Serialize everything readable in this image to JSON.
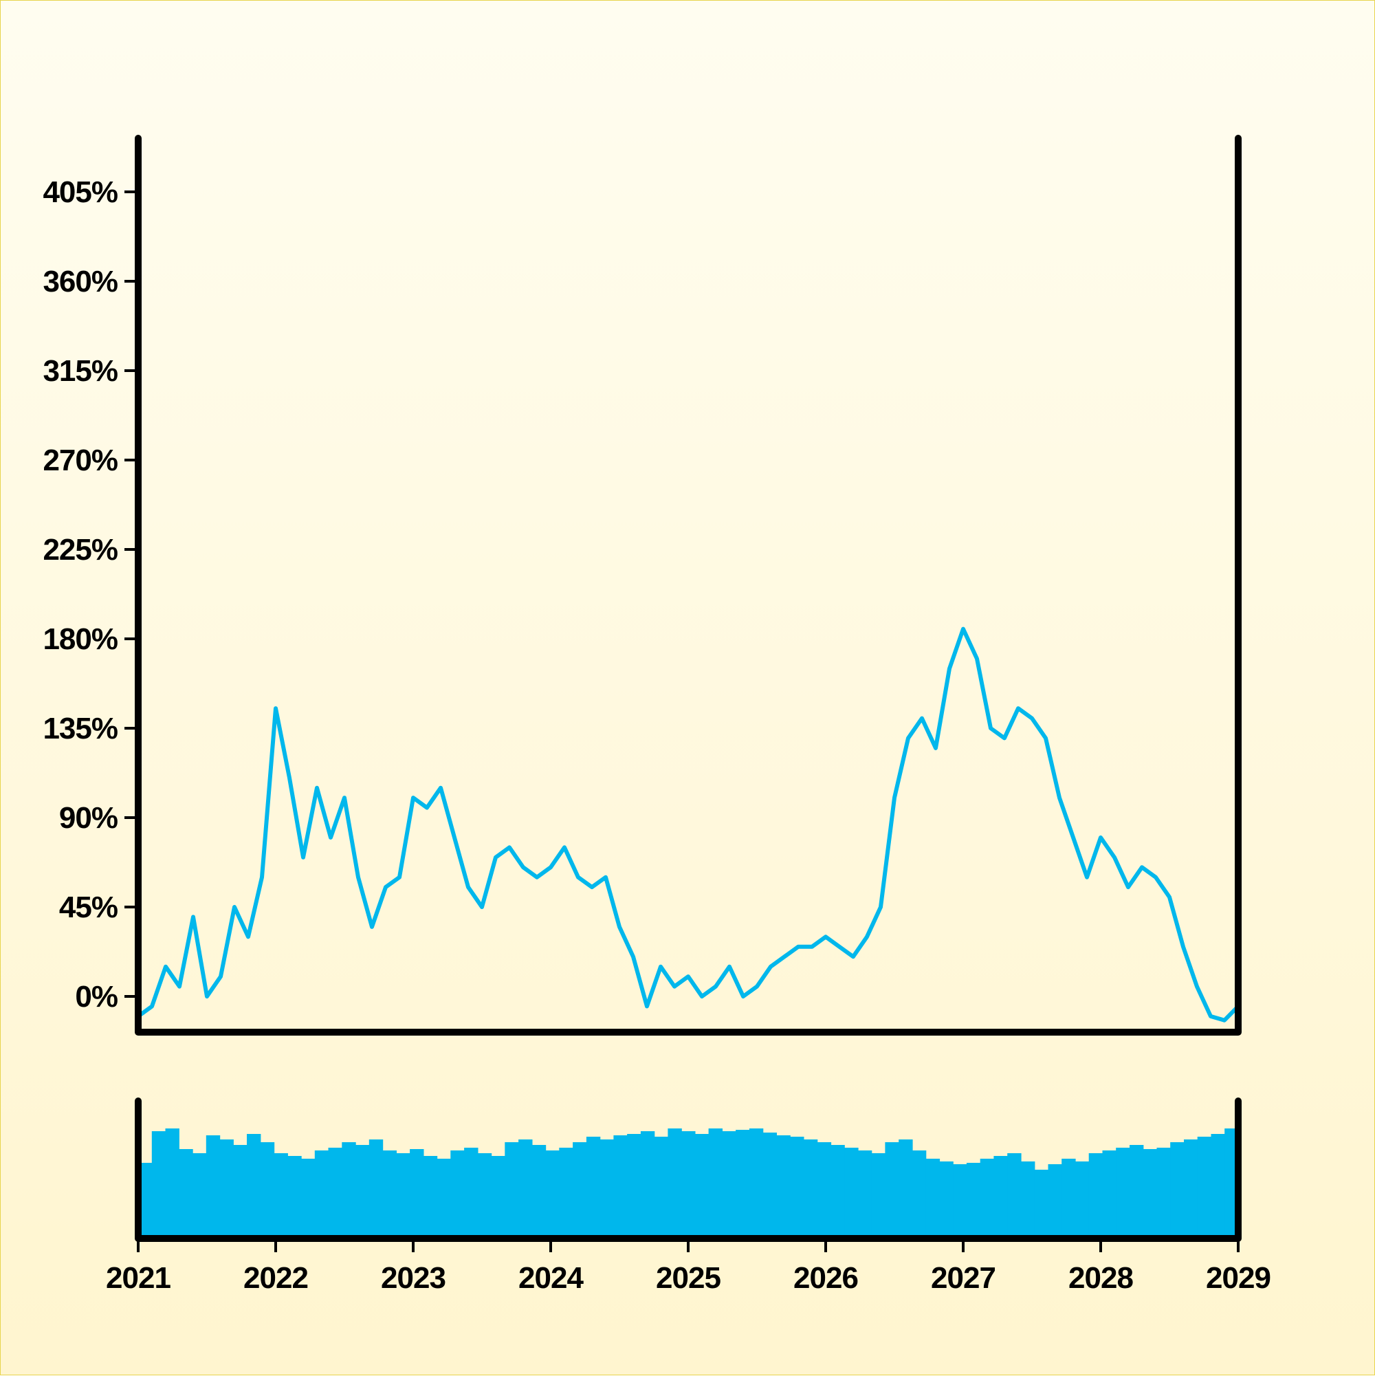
{
  "colors": {
    "line": "#00b7ec",
    "volume": "#00b7ec",
    "axis": "#000000",
    "background_top": "#fffdf0",
    "background_bottom": "#fff5cf"
  },
  "chart_data": {
    "type": "line",
    "title": "",
    "xlabel": "",
    "ylabel": "",
    "y_ticks": [
      "0%",
      "45%",
      "90%",
      "135%",
      "180%",
      "225%",
      "270%",
      "315%",
      "360%",
      "405%"
    ],
    "x_ticks": [
      "2021",
      "2022",
      "2023",
      "2024",
      "2025",
      "2026",
      "2027",
      "2028",
      "2029"
    ],
    "xlim": [
      2021,
      2029
    ],
    "ylim": [
      -18,
      432
    ],
    "grid": false,
    "legend": "none",
    "series": [
      {
        "kind": "price",
        "x": [
          2021.0,
          2021.1,
          2021.2,
          2021.3,
          2021.4,
          2021.5,
          2021.6,
          2021.7,
          2021.8,
          2021.9,
          2022.0,
          2022.1,
          2022.2,
          2022.3,
          2022.4,
          2022.5,
          2022.6,
          2022.7,
          2022.8,
          2022.9,
          2023.0,
          2023.1,
          2023.2,
          2023.3,
          2023.4,
          2023.5,
          2023.6,
          2023.7,
          2023.8,
          2023.9,
          2024.0,
          2024.1,
          2024.2,
          2024.3,
          2024.4,
          2024.5,
          2024.6,
          2024.7,
          2024.8,
          2024.9,
          2025.0,
          2025.1,
          2025.2,
          2025.3,
          2025.4,
          2025.5,
          2025.6,
          2025.7,
          2025.8,
          2025.9,
          2026.0,
          2026.1,
          2026.2,
          2026.3,
          2026.4,
          2026.5,
          2026.6,
          2026.7,
          2026.8,
          2026.9,
          2027.0,
          2027.1,
          2027.2,
          2027.3,
          2027.4,
          2027.5,
          2027.6,
          2027.7,
          2027.8,
          2027.9,
          2028.0,
          2028.1,
          2028.2,
          2028.3,
          2028.4,
          2028.5,
          2028.6,
          2028.7,
          2028.8,
          2028.9,
          2029.0
        ],
        "y": [
          -10,
          -5,
          15,
          5,
          40,
          0,
          10,
          45,
          30,
          60,
          145,
          110,
          70,
          105,
          80,
          100,
          60,
          35,
          55,
          60,
          100,
          95,
          105,
          80,
          55,
          45,
          70,
          75,
          65,
          60,
          65,
          75,
          60,
          55,
          60,
          35,
          20,
          -5,
          15,
          5,
          10,
          0,
          5,
          15,
          0,
          5,
          15,
          20,
          25,
          25,
          30,
          25,
          20,
          30,
          45,
          100,
          130,
          140,
          125,
          165,
          185,
          170,
          135,
          130,
          145,
          140,
          130,
          100,
          80,
          60,
          80,
          70,
          55,
          65,
          60,
          50,
          25,
          5,
          -10,
          -12,
          -5
        ]
      },
      {
        "kind": "volume",
        "values": [
          55,
          78,
          80,
          65,
          62,
          75,
          72,
          68,
          76,
          70,
          62,
          60,
          58,
          64,
          66,
          70,
          68,
          72,
          64,
          62,
          65,
          60,
          58,
          64,
          66,
          62,
          60,
          70,
          72,
          68,
          64,
          66,
          70,
          74,
          72,
          75,
          76,
          78,
          74,
          80,
          78,
          76,
          80,
          78,
          79,
          80,
          77,
          75,
          74,
          72,
          70,
          68,
          66,
          64,
          62,
          70,
          72,
          64,
          58,
          56,
          54,
          55,
          58,
          60,
          62,
          56,
          50,
          54,
          58,
          56,
          62,
          64,
          66,
          68,
          65,
          66,
          70,
          72,
          74,
          76,
          80
        ]
      }
    ]
  }
}
